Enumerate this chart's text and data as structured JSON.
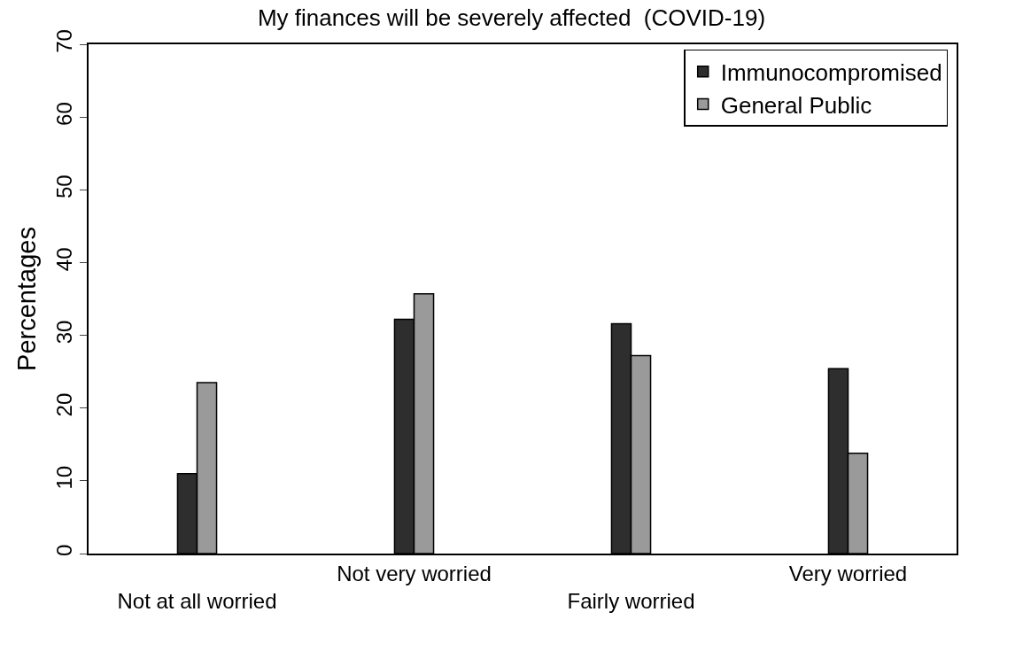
{
  "chart_data": {
    "type": "bar",
    "title": "My finances will be severely affected  (COVID-19)",
    "ylabel": "Percentages",
    "categories": [
      "Not at all worried",
      "Not very worried",
      "Fairly worried",
      "Very worried"
    ],
    "series": [
      {
        "name": "Immunocompromised",
        "color": "#2e2e2e",
        "values": [
          11.0,
          32.2,
          31.6,
          25.4
        ]
      },
      {
        "name": "General Public",
        "color": "#9a9a9a",
        "values": [
          23.5,
          35.7,
          27.2,
          13.8
        ]
      }
    ],
    "ylim": [
      0,
      70
    ],
    "yticks": [
      0,
      10,
      20,
      30,
      40,
      50,
      60,
      70
    ],
    "grid": false,
    "legend": "top right"
  }
}
